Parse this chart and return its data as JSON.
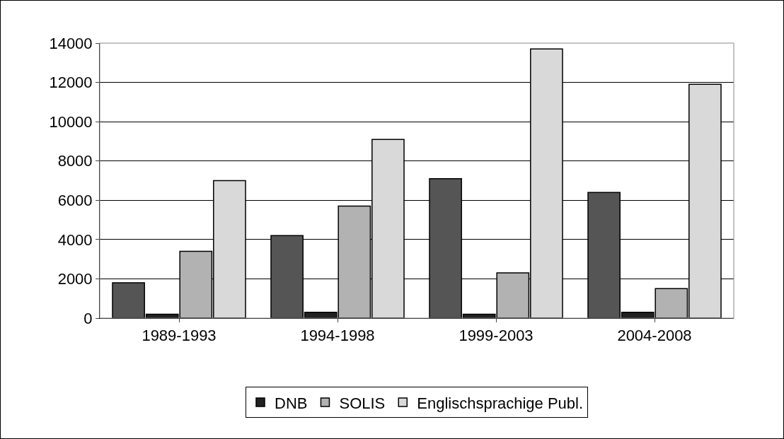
{
  "chart_data": {
    "type": "bar",
    "categories": [
      "1989-1993",
      "1994-1998",
      "1999-2003",
      "2004-2008"
    ],
    "series": [
      {
        "color": "#555555",
        "values": [
          1800,
          4200,
          7100,
          6400
        ]
      },
      {
        "name": "DNB",
        "color": "#222222",
        "values": [
          200,
          300,
          200,
          300
        ]
      },
      {
        "name": "SOLIS",
        "color": "#b2b2b2",
        "values": [
          3400,
          5700,
          2300,
          1500
        ]
      },
      {
        "name": "Englischsprachige Publ.",
        "color": "#d9d9d9",
        "values": [
          7000,
          9100,
          13700,
          11900
        ]
      }
    ],
    "ylim": [
      0,
      14000
    ],
    "yticks": [
      0,
      2000,
      4000,
      6000,
      8000,
      10000,
      12000,
      14000
    ],
    "grid": "y",
    "legend": "bottom"
  }
}
